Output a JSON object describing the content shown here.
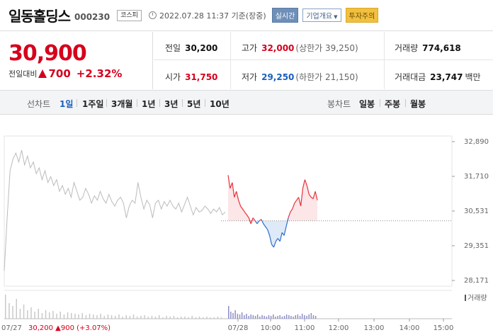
{
  "header": {
    "name": "일동홀딩스",
    "code": "000230",
    "market": "코스피",
    "timestamp": "2022.07.28 11:37 기준(장중)",
    "realtime_label": "실시간",
    "corp_label": "기업개요",
    "warning_label": "투자주의"
  },
  "price": {
    "current": "30,900",
    "change_label": "전일대비",
    "change": "700",
    "change_pct": "+2.32%"
  },
  "stats": {
    "prev_close_label": "전일",
    "prev_close": "30,200",
    "high_label": "고가",
    "high": "32,000",
    "upper_limit": "(상한가 39,250)",
    "volume_label": "거래량",
    "volume": "774,618",
    "open_label": "시가",
    "open": "31,750",
    "low_label": "저가",
    "low": "29,250",
    "lower_limit": "(하한가 21,150)",
    "amount_label": "거래대금",
    "amount": "23,747",
    "amount_unit": "백만"
  },
  "period_bar": {
    "line_label": "선차트",
    "line_tabs": [
      "1일",
      "1주일",
      "3개월",
      "1년",
      "3년",
      "5년",
      "10년"
    ],
    "active": "1일",
    "candle_label": "봉차트",
    "candle_tabs": [
      "일봉",
      "주봉",
      "월봉"
    ]
  },
  "chart_data": {
    "type": "line",
    "y_ticks": [
      "32,890",
      "31,710",
      "30,531",
      "29,351",
      "28,171"
    ],
    "ylim": [
      28171,
      32890
    ],
    "x_ticks": [
      "07/28",
      "10:00",
      "11:00",
      "12:00",
      "13:00",
      "14:00",
      "15:00"
    ],
    "prev_day_label": "07/27",
    "prev_day_summary": "30,200 ▲900 (+3.07%)",
    "volume_label": "거래량",
    "baseline": 30200,
    "colors": {
      "up": "#e8323c",
      "down": "#2a6fd1",
      "prev": "#bbbbbb"
    },
    "prev_day_series": [
      28500,
      30300,
      31900,
      32300,
      32500,
      32200,
      32600,
      32100,
      32400,
      32000,
      32200,
      31800,
      32000,
      31600,
      31900,
      31500,
      31700,
      31400,
      31600,
      31200,
      31400,
      31100,
      31300,
      31000,
      31500,
      31200,
      30900,
      31000,
      31300,
      31100,
      30800,
      31050,
      30900,
      31200,
      30950,
      30800,
      31100,
      30850,
      30700,
      30900,
      31000,
      30800,
      30300,
      30700,
      30900,
      30800,
      31500,
      31000,
      30600,
      30900,
      30750,
      30300,
      30800,
      30900,
      30600,
      30850,
      30700,
      30900,
      30700,
      30600,
      30800,
      30500,
      30750,
      31000,
      30700,
      30400,
      30650,
      30500,
      30550,
      30700,
      30600,
      30450,
      30600,
      30500,
      30650,
      30400,
      30500
    ],
    "today_series": [
      31750,
      31300,
      31500,
      31000,
      31200,
      30900,
      30700,
      30600,
      30500,
      30400,
      30300,
      30100,
      30300,
      30200,
      30100,
      30200,
      30250,
      30100,
      30000,
      29900,
      29700,
      29400,
      29300,
      29500,
      29600,
      29500,
      29800,
      29700,
      30000,
      30300,
      30500,
      30600,
      30800,
      30900,
      31000,
      30700,
      31300,
      31600,
      31400,
      31100,
      31000,
      30950,
      31200,
      30900
    ]
  }
}
